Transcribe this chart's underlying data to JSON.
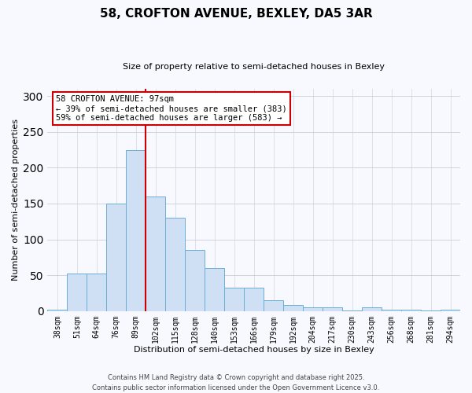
{
  "title": "58, CROFTON AVENUE, BEXLEY, DA5 3AR",
  "subtitle": "Size of property relative to semi-detached houses in Bexley",
  "xlabel": "Distribution of semi-detached houses by size in Bexley",
  "ylabel": "Number of semi-detached properties",
  "bar_labels": [
    "38sqm",
    "51sqm",
    "64sqm",
    "76sqm",
    "89sqm",
    "102sqm",
    "115sqm",
    "128sqm",
    "140sqm",
    "153sqm",
    "166sqm",
    "179sqm",
    "192sqm",
    "204sqm",
    "217sqm",
    "230sqm",
    "243sqm",
    "256sqm",
    "268sqm",
    "281sqm",
    "294sqm"
  ],
  "bar_values": [
    2,
    52,
    52,
    150,
    225,
    160,
    130,
    85,
    60,
    33,
    33,
    15,
    8,
    5,
    5,
    1,
    5,
    2,
    2,
    1,
    2
  ],
  "bar_color": "#cfe0f5",
  "bar_edge_color": "#6aaed6",
  "vline_x_idx": 5,
  "vline_color": "#cc0000",
  "annotation_title": "58 CROFTON AVENUE: 97sqm",
  "annotation_line1": "← 39% of semi-detached houses are smaller (383)",
  "annotation_line2": "59% of semi-detached houses are larger (583) →",
  "ylim": [
    0,
    310
  ],
  "yticks": [
    0,
    50,
    100,
    150,
    200,
    250,
    300
  ],
  "footer1": "Contains HM Land Registry data © Crown copyright and database right 2025.",
  "footer2": "Contains public sector information licensed under the Open Government Licence v3.0.",
  "bg_color": "#f7f9ff",
  "grid_color": "#c8cdd8"
}
